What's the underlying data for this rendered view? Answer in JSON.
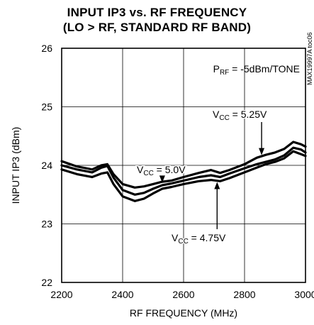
{
  "chart_data": {
    "type": "line",
    "title": [
      "INPUT IP3 vs. RF FREQUENCY",
      "(LO > RF, STANDARD RF BAND)"
    ],
    "xlabel": "RF FREQUENCY (MHz)",
    "ylabel": "INPUT IP3 (dBm)",
    "xlim": [
      2200,
      3000
    ],
    "ylim": [
      22,
      26
    ],
    "xticks": [
      "2200",
      "2400",
      "2600",
      "2800",
      "3000"
    ],
    "yticks": [
      "22",
      "23",
      "24",
      "25",
      "26"
    ],
    "grid": true,
    "condition": {
      "main": "P",
      "sub": "RF",
      "rest": " = -5dBm/TONE"
    },
    "part_id": "MAX19997A toc06",
    "series": [
      {
        "name": "VCC = 5.25V",
        "label_main": "V",
        "label_sub": "CC",
        "label_rest": " = 5.25V",
        "x": [
          2200,
          2250,
          2300,
          2330,
          2350,
          2370,
          2400,
          2440,
          2470,
          2500,
          2530,
          2560,
          2600,
          2650,
          2690,
          2720,
          2750,
          2800,
          2840,
          2870,
          2900,
          2930,
          2960,
          2985,
          3000
        ],
        "values": [
          24.07,
          23.98,
          23.93,
          24.0,
          24.02,
          23.85,
          23.68,
          23.62,
          23.64,
          23.68,
          23.72,
          23.74,
          23.8,
          23.87,
          23.92,
          23.87,
          23.92,
          24.02,
          24.13,
          24.18,
          24.22,
          24.28,
          24.4,
          24.36,
          24.32
        ]
      },
      {
        "name": "VCC = 5.0V",
        "label_main": "V",
        "label_sub": "CC",
        "label_rest": " = 5.0V",
        "x": [
          2200,
          2250,
          2300,
          2330,
          2350,
          2370,
          2400,
          2440,
          2470,
          2500,
          2530,
          2560,
          2600,
          2650,
          2690,
          2720,
          2750,
          2800,
          2840,
          2870,
          2900,
          2930,
          2960,
          2985,
          3000
        ],
        "values": [
          24.0,
          23.93,
          23.88,
          23.96,
          23.99,
          23.79,
          23.58,
          23.5,
          23.53,
          23.6,
          23.66,
          23.69,
          23.74,
          23.8,
          23.83,
          23.8,
          23.86,
          23.95,
          24.02,
          24.06,
          24.1,
          24.17,
          24.3,
          24.27,
          24.22
        ]
      },
      {
        "name": "VCC = 4.75V",
        "label_main": "V",
        "label_sub": "CC",
        "label_rest": " = 4.75V",
        "x": [
          2200,
          2250,
          2300,
          2330,
          2350,
          2370,
          2400,
          2440,
          2470,
          2500,
          2530,
          2560,
          2600,
          2650,
          2690,
          2720,
          2750,
          2800,
          2840,
          2870,
          2900,
          2930,
          2960,
          2985,
          3000
        ],
        "values": [
          23.93,
          23.85,
          23.8,
          23.86,
          23.88,
          23.68,
          23.47,
          23.39,
          23.43,
          23.52,
          23.6,
          23.63,
          23.68,
          23.73,
          23.75,
          23.73,
          23.78,
          23.88,
          23.96,
          24.02,
          24.06,
          24.12,
          24.24,
          24.19,
          24.16
        ]
      }
    ]
  }
}
